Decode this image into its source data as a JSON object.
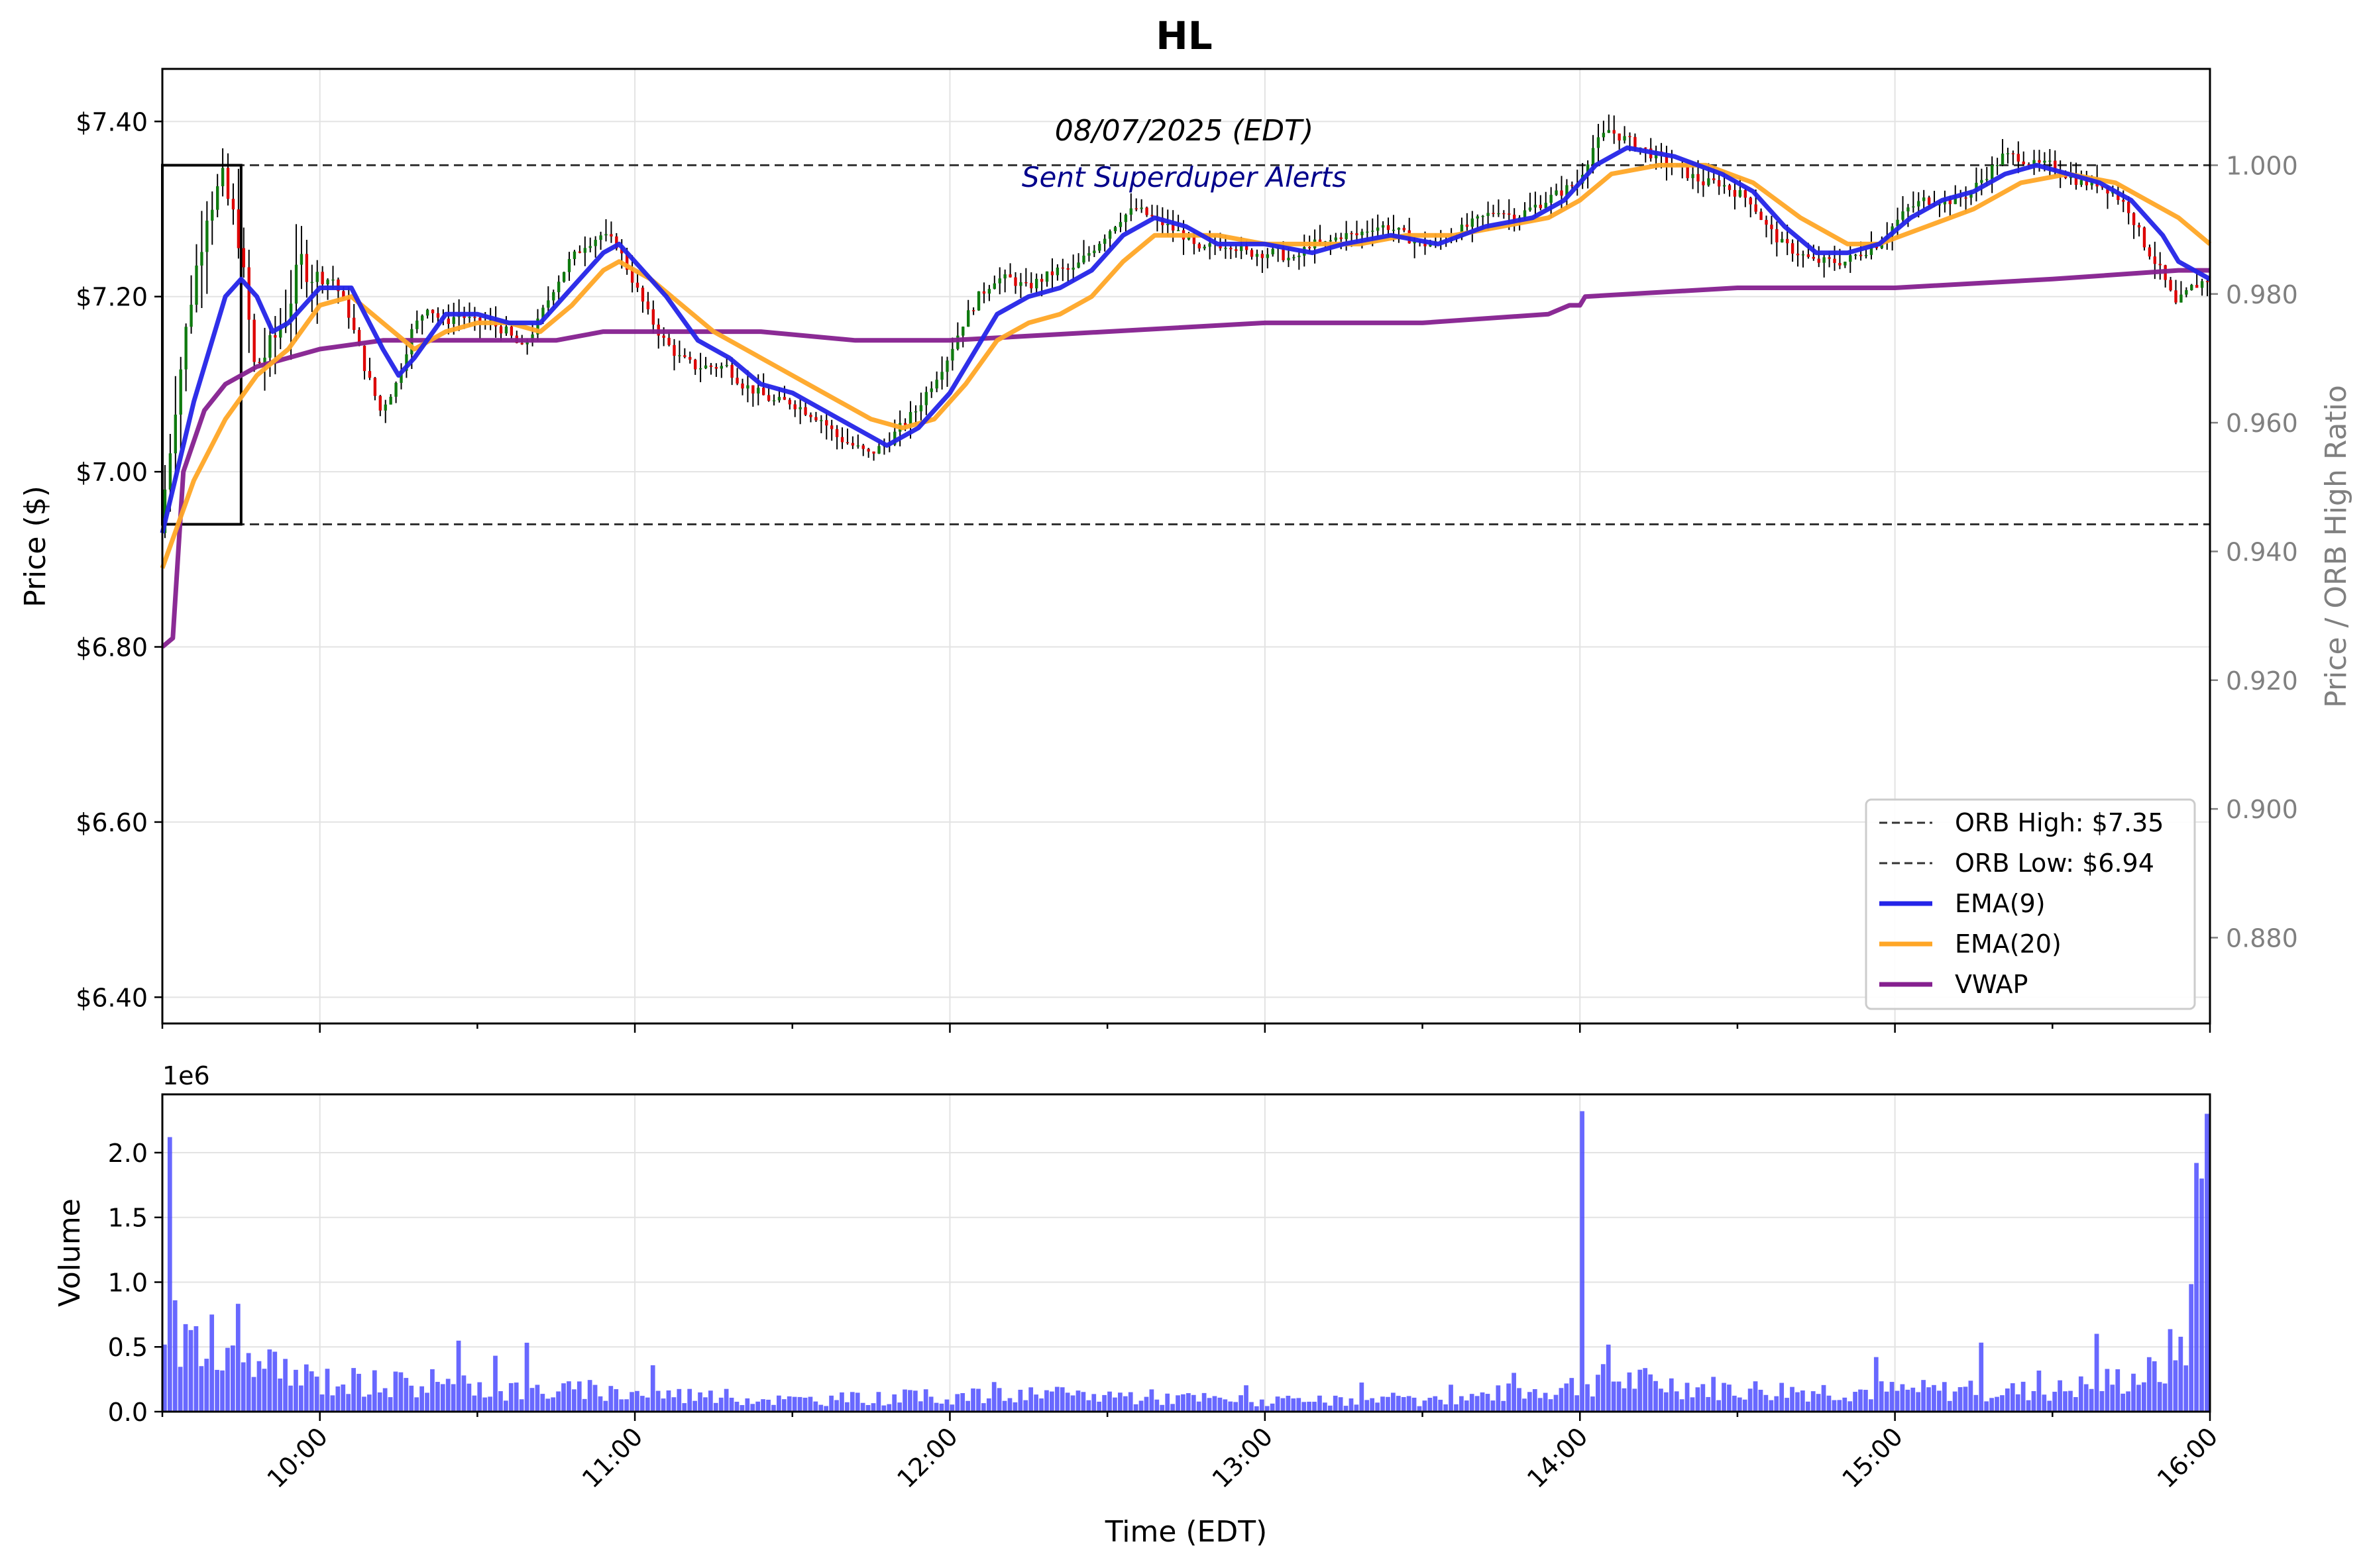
{
  "title": "HL",
  "date_label": "08/07/2025 (EDT)",
  "alert_label": "Sent Superduper Alerts",
  "colors": {
    "ema9": "#2424e8",
    "ema20": "#ffa626",
    "vwap": "#85208f",
    "volume": "#4d4dff",
    "up": "#0f7a0f",
    "down": "#dd0000",
    "wick": "#000000",
    "alert": "#00008b",
    "right_axis": "#808080"
  },
  "chart_data": [
    {
      "type": "candlestick",
      "ylabel": "Price ($)",
      "y2label": "Price / ORB High Ratio",
      "ylim": [
        6.37,
        7.46
      ],
      "y_ticks": [
        6.4,
        6.6,
        6.8,
        7.0,
        7.2,
        7.4
      ],
      "y_tick_labels": [
        "$6.40",
        "$6.60",
        "$6.80",
        "$7.00",
        "$7.20",
        "$7.40"
      ],
      "y2_ticks": [
        0.88,
        0.9,
        0.92,
        0.94,
        0.96,
        0.98,
        1.0
      ],
      "y2_tick_labels": [
        "0.880",
        "0.900",
        "0.920",
        "0.940",
        "0.960",
        "0.980",
        "1.000"
      ],
      "xlim": [
        "09:30",
        "16:00"
      ],
      "x_ticks": [
        "10:00",
        "11:00",
        "12:00",
        "13:00",
        "14:00",
        "15:00",
        "16:00"
      ],
      "grid": true,
      "legend_position": "bottom-right",
      "orb": {
        "high": 7.35,
        "low": 6.94,
        "start": "09:30",
        "end": "09:45"
      },
      "legend": [
        {
          "label": "ORB High: $7.35",
          "style": "dashed",
          "color": "#333333"
        },
        {
          "label": "ORB Low: $6.94",
          "style": "dashed",
          "color": "#333333"
        },
        {
          "label": "EMA(9)",
          "style": "solid",
          "color": "#2424e8"
        },
        {
          "label": "EMA(20)",
          "style": "solid",
          "color": "#ffa626"
        },
        {
          "label": "VWAP",
          "style": "solid",
          "color": "#85208f"
        }
      ],
      "price_path": [
        [
          "09:30",
          6.93
        ],
        [
          "09:33",
          7.08
        ],
        [
          "09:36",
          7.2
        ],
        [
          "09:39",
          7.3
        ],
        [
          "09:42",
          7.33
        ],
        [
          "09:45",
          7.27
        ],
        [
          "09:48",
          7.12
        ],
        [
          "09:51",
          7.14
        ],
        [
          "09:54",
          7.18
        ],
        [
          "09:57",
          7.24
        ],
        [
          "10:00",
          7.22
        ],
        [
          "10:03",
          7.22
        ],
        [
          "10:06",
          7.18
        ],
        [
          "10:09",
          7.12
        ],
        [
          "10:12",
          7.07
        ],
        [
          "10:15",
          7.1
        ],
        [
          "10:18",
          7.16
        ],
        [
          "10:21",
          7.19
        ],
        [
          "10:24",
          7.17
        ],
        [
          "10:27",
          7.18
        ],
        [
          "10:30",
          7.17
        ],
        [
          "10:33",
          7.17
        ],
        [
          "10:36",
          7.16
        ],
        [
          "10:39",
          7.14
        ],
        [
          "10:42",
          7.17
        ],
        [
          "10:45",
          7.21
        ],
        [
          "10:48",
          7.24
        ],
        [
          "10:51",
          7.26
        ],
        [
          "10:54",
          7.27
        ],
        [
          "10:57",
          7.26
        ],
        [
          "11:00",
          7.22
        ],
        [
          "11:03",
          7.18
        ],
        [
          "11:06",
          7.15
        ],
        [
          "11:09",
          7.13
        ],
        [
          "11:12",
          7.12
        ],
        [
          "11:15",
          7.12
        ],
        [
          "11:18",
          7.12
        ],
        [
          "11:21",
          7.1
        ],
        [
          "11:24",
          7.09
        ],
        [
          "11:27",
          7.08
        ],
        [
          "11:30",
          7.08
        ],
        [
          "11:33",
          7.07
        ],
        [
          "11:36",
          7.06
        ],
        [
          "11:39",
          7.04
        ],
        [
          "11:42",
          7.03
        ],
        [
          "11:45",
          7.02
        ],
        [
          "11:48",
          7.03
        ],
        [
          "11:51",
          7.05
        ],
        [
          "11:54",
          7.07
        ],
        [
          "11:57",
          7.1
        ],
        [
          "12:00",
          7.13
        ],
        [
          "12:03",
          7.17
        ],
        [
          "12:06",
          7.2
        ],
        [
          "12:09",
          7.22
        ],
        [
          "12:12",
          7.22
        ],
        [
          "12:15",
          7.21
        ],
        [
          "12:18",
          7.22
        ],
        [
          "12:21",
          7.23
        ],
        [
          "12:24",
          7.23
        ],
        [
          "12:27",
          7.25
        ],
        [
          "12:30",
          7.27
        ],
        [
          "12:33",
          7.29
        ],
        [
          "12:36",
          7.3
        ],
        [
          "12:39",
          7.29
        ],
        [
          "12:42",
          7.28
        ],
        [
          "12:45",
          7.27
        ],
        [
          "12:48",
          7.25
        ],
        [
          "12:51",
          7.26
        ],
        [
          "12:54",
          7.26
        ],
        [
          "12:57",
          7.25
        ],
        [
          "13:00",
          7.25
        ],
        [
          "13:03",
          7.25
        ],
        [
          "13:06",
          7.24
        ],
        [
          "13:09",
          7.26
        ],
        [
          "13:12",
          7.26
        ],
        [
          "13:15",
          7.27
        ],
        [
          "13:18",
          7.27
        ],
        [
          "13:21",
          7.28
        ],
        [
          "13:24",
          7.28
        ],
        [
          "13:27",
          7.27
        ],
        [
          "13:30",
          7.26
        ],
        [
          "13:33",
          7.26
        ],
        [
          "13:36",
          7.27
        ],
        [
          "13:39",
          7.28
        ],
        [
          "13:42",
          7.29
        ],
        [
          "13:45",
          7.3
        ],
        [
          "13:48",
          7.29
        ],
        [
          "13:51",
          7.3
        ],
        [
          "13:54",
          7.31
        ],
        [
          "13:57",
          7.32
        ],
        [
          "14:00",
          7.33
        ],
        [
          "14:03",
          7.37
        ],
        [
          "14:06",
          7.39
        ],
        [
          "14:09",
          7.38
        ],
        [
          "14:12",
          7.37
        ],
        [
          "14:15",
          7.36
        ],
        [
          "14:18",
          7.35
        ],
        [
          "14:21",
          7.34
        ],
        [
          "14:24",
          7.33
        ],
        [
          "14:27",
          7.33
        ],
        [
          "14:30",
          7.32
        ],
        [
          "14:33",
          7.31
        ],
        [
          "14:36",
          7.28
        ],
        [
          "14:39",
          7.26
        ],
        [
          "14:42",
          7.25
        ],
        [
          "14:45",
          7.24
        ],
        [
          "14:48",
          7.24
        ],
        [
          "14:51",
          7.24
        ],
        [
          "14:54",
          7.25
        ],
        [
          "14:57",
          7.26
        ],
        [
          "15:00",
          7.28
        ],
        [
          "15:03",
          7.3
        ],
        [
          "15:06",
          7.31
        ],
        [
          "15:09",
          7.31
        ],
        [
          "15:12",
          7.31
        ],
        [
          "15:15",
          7.32
        ],
        [
          "15:18",
          7.34
        ],
        [
          "15:21",
          7.36
        ],
        [
          "15:24",
          7.36
        ],
        [
          "15:27",
          7.35
        ],
        [
          "15:30",
          7.35
        ],
        [
          "15:33",
          7.34
        ],
        [
          "15:36",
          7.33
        ],
        [
          "15:39",
          7.33
        ],
        [
          "15:42",
          7.32
        ],
        [
          "15:45",
          7.3
        ],
        [
          "15:48",
          7.26
        ],
        [
          "15:51",
          7.23
        ],
        [
          "15:54",
          7.19
        ],
        [
          "15:57",
          7.21
        ],
        [
          "16:00",
          7.22
        ]
      ],
      "ema9": [
        [
          "09:30",
          6.93
        ],
        [
          "09:36",
          7.08
        ],
        [
          "09:42",
          7.2
        ],
        [
          "09:45",
          7.22
        ],
        [
          "09:48",
          7.2
        ],
        [
          "09:51",
          7.16
        ],
        [
          "09:54",
          7.17
        ],
        [
          "09:57",
          7.19
        ],
        [
          "10:00",
          7.21
        ],
        [
          "10:06",
          7.21
        ],
        [
          "10:12",
          7.14
        ],
        [
          "10:15",
          7.11
        ],
        [
          "10:18",
          7.13
        ],
        [
          "10:24",
          7.18
        ],
        [
          "10:30",
          7.18
        ],
        [
          "10:36",
          7.17
        ],
        [
          "10:42",
          7.17
        ],
        [
          "10:48",
          7.21
        ],
        [
          "10:54",
          7.25
        ],
        [
          "10:57",
          7.26
        ],
        [
          "11:00",
          7.24
        ],
        [
          "11:06",
          7.2
        ],
        [
          "11:12",
          7.15
        ],
        [
          "11:18",
          7.13
        ],
        [
          "11:24",
          7.1
        ],
        [
          "11:30",
          7.09
        ],
        [
          "11:36",
          7.07
        ],
        [
          "11:42",
          7.05
        ],
        [
          "11:48",
          7.03
        ],
        [
          "11:54",
          7.05
        ],
        [
          "12:00",
          7.09
        ],
        [
          "12:06",
          7.15
        ],
        [
          "12:09",
          7.18
        ],
        [
          "12:15",
          7.2
        ],
        [
          "12:21",
          7.21
        ],
        [
          "12:27",
          7.23
        ],
        [
          "12:33",
          7.27
        ],
        [
          "12:39",
          7.29
        ],
        [
          "12:45",
          7.28
        ],
        [
          "12:51",
          7.26
        ],
        [
          "13:00",
          7.26
        ],
        [
          "13:09",
          7.25
        ],
        [
          "13:15",
          7.26
        ],
        [
          "13:24",
          7.27
        ],
        [
          "13:33",
          7.26
        ],
        [
          "13:42",
          7.28
        ],
        [
          "13:51",
          7.29
        ],
        [
          "13:57",
          7.31
        ],
        [
          "14:03",
          7.35
        ],
        [
          "14:09",
          7.37
        ],
        [
          "14:18",
          7.36
        ],
        [
          "14:27",
          7.34
        ],
        [
          "14:33",
          7.32
        ],
        [
          "14:39",
          7.28
        ],
        [
          "14:45",
          7.25
        ],
        [
          "14:51",
          7.25
        ],
        [
          "14:57",
          7.26
        ],
        [
          "15:03",
          7.29
        ],
        [
          "15:09",
          7.31
        ],
        [
          "15:15",
          7.32
        ],
        [
          "15:21",
          7.34
        ],
        [
          "15:27",
          7.35
        ],
        [
          "15:33",
          7.34
        ],
        [
          "15:39",
          7.33
        ],
        [
          "15:45",
          7.31
        ],
        [
          "15:51",
          7.27
        ],
        [
          "15:54",
          7.24
        ],
        [
          "16:00",
          7.22
        ]
      ],
      "ema20": [
        [
          "09:30",
          6.89
        ],
        [
          "09:36",
          6.99
        ],
        [
          "09:42",
          7.06
        ],
        [
          "09:48",
          7.11
        ],
        [
          "09:54",
          7.14
        ],
        [
          "10:00",
          7.19
        ],
        [
          "10:06",
          7.2
        ],
        [
          "10:12",
          7.17
        ],
        [
          "10:18",
          7.14
        ],
        [
          "10:24",
          7.16
        ],
        [
          "10:30",
          7.17
        ],
        [
          "10:36",
          7.17
        ],
        [
          "10:42",
          7.16
        ],
        [
          "10:48",
          7.19
        ],
        [
          "10:54",
          7.23
        ],
        [
          "10:57",
          7.24
        ],
        [
          "11:03",
          7.22
        ],
        [
          "11:09",
          7.19
        ],
        [
          "11:15",
          7.16
        ],
        [
          "11:21",
          7.14
        ],
        [
          "11:27",
          7.12
        ],
        [
          "11:33",
          7.1
        ],
        [
          "11:39",
          7.08
        ],
        [
          "11:45",
          7.06
        ],
        [
          "11:51",
          7.05
        ],
        [
          "11:57",
          7.06
        ],
        [
          "12:03",
          7.1
        ],
        [
          "12:09",
          7.15
        ],
        [
          "12:15",
          7.17
        ],
        [
          "12:21",
          7.18
        ],
        [
          "12:27",
          7.2
        ],
        [
          "12:33",
          7.24
        ],
        [
          "12:39",
          7.27
        ],
        [
          "12:45",
          7.27
        ],
        [
          "12:51",
          7.27
        ],
        [
          "13:00",
          7.26
        ],
        [
          "13:09",
          7.26
        ],
        [
          "13:18",
          7.26
        ],
        [
          "13:27",
          7.27
        ],
        [
          "13:36",
          7.27
        ],
        [
          "13:45",
          7.28
        ],
        [
          "13:54",
          7.29
        ],
        [
          "14:00",
          7.31
        ],
        [
          "14:06",
          7.34
        ],
        [
          "14:15",
          7.35
        ],
        [
          "14:24",
          7.35
        ],
        [
          "14:33",
          7.33
        ],
        [
          "14:42",
          7.29
        ],
        [
          "14:51",
          7.26
        ],
        [
          "14:57",
          7.26
        ],
        [
          "15:06",
          7.28
        ],
        [
          "15:15",
          7.3
        ],
        [
          "15:24",
          7.33
        ],
        [
          "15:33",
          7.34
        ],
        [
          "15:42",
          7.33
        ],
        [
          "15:48",
          7.31
        ],
        [
          "15:54",
          7.29
        ],
        [
          "16:00",
          7.26
        ]
      ],
      "vwap": [
        [
          "09:30",
          6.8
        ],
        [
          "09:32",
          6.81
        ],
        [
          "09:34",
          7.0
        ],
        [
          "09:38",
          7.07
        ],
        [
          "09:42",
          7.1
        ],
        [
          "09:48",
          7.12
        ],
        [
          "09:54",
          7.13
        ],
        [
          "10:00",
          7.14
        ],
        [
          "10:12",
          7.15
        ],
        [
          "10:30",
          7.15
        ],
        [
          "10:45",
          7.15
        ],
        [
          "10:54",
          7.16
        ],
        [
          "11:06",
          7.16
        ],
        [
          "11:24",
          7.16
        ],
        [
          "11:42",
          7.15
        ],
        [
          "12:00",
          7.15
        ],
        [
          "12:30",
          7.16
        ],
        [
          "13:00",
          7.17
        ],
        [
          "13:30",
          7.17
        ],
        [
          "13:54",
          7.18
        ],
        [
          "13:58",
          7.19
        ],
        [
          "14:00",
          7.19
        ],
        [
          "14:01",
          7.2
        ],
        [
          "14:30",
          7.21
        ],
        [
          "15:00",
          7.21
        ],
        [
          "15:30",
          7.22
        ],
        [
          "15:54",
          7.23
        ],
        [
          "16:00",
          7.23
        ]
      ]
    },
    {
      "type": "bar",
      "ylabel": "Volume",
      "xlabel": "Time (EDT)",
      "scale_label": "1e6",
      "ylim": [
        0,
        2.45
      ],
      "y_ticks": [
        0.0,
        0.5,
        1.0,
        1.5,
        2.0
      ],
      "y_tick_labels": [
        "0.0",
        "0.5",
        "1.0",
        "1.5",
        "2.0"
      ],
      "x_ticks": [
        "10:00",
        "11:00",
        "12:00",
        "13:00",
        "14:00",
        "15:00",
        "16:00"
      ],
      "x_tick_labels": [
        "10:00",
        "11:00",
        "12:00",
        "13:00",
        "14:00",
        "15:00",
        "16:00"
      ],
      "grid": true,
      "volume_spikes": [
        {
          "time": "09:31",
          "value": 2.12
        },
        {
          "time": "09:32",
          "value": 0.86
        },
        {
          "time": "09:39",
          "value": 0.75
        },
        {
          "time": "14:00",
          "value": 2.32
        },
        {
          "time": "15:58",
          "value": 1.8
        },
        {
          "time": "15:59",
          "value": 2.3
        }
      ],
      "volume_baseline": [
        [
          "09:30",
          0.55
        ],
        [
          "09:45",
          0.35
        ],
        [
          "10:00",
          0.25
        ],
        [
          "10:30",
          0.18
        ],
        [
          "11:00",
          0.15
        ],
        [
          "11:30",
          0.09
        ],
        [
          "12:00",
          0.12
        ],
        [
          "12:30",
          0.13
        ],
        [
          "13:00",
          0.08
        ],
        [
          "13:30",
          0.08
        ],
        [
          "13:55",
          0.18
        ],
        [
          "14:05",
          0.25
        ],
        [
          "14:30",
          0.17
        ],
        [
          "15:00",
          0.16
        ],
        [
          "15:30",
          0.16
        ],
        [
          "15:50",
          0.3
        ],
        [
          "15:55",
          0.6
        ],
        [
          "16:00",
          1.2
        ]
      ]
    }
  ]
}
